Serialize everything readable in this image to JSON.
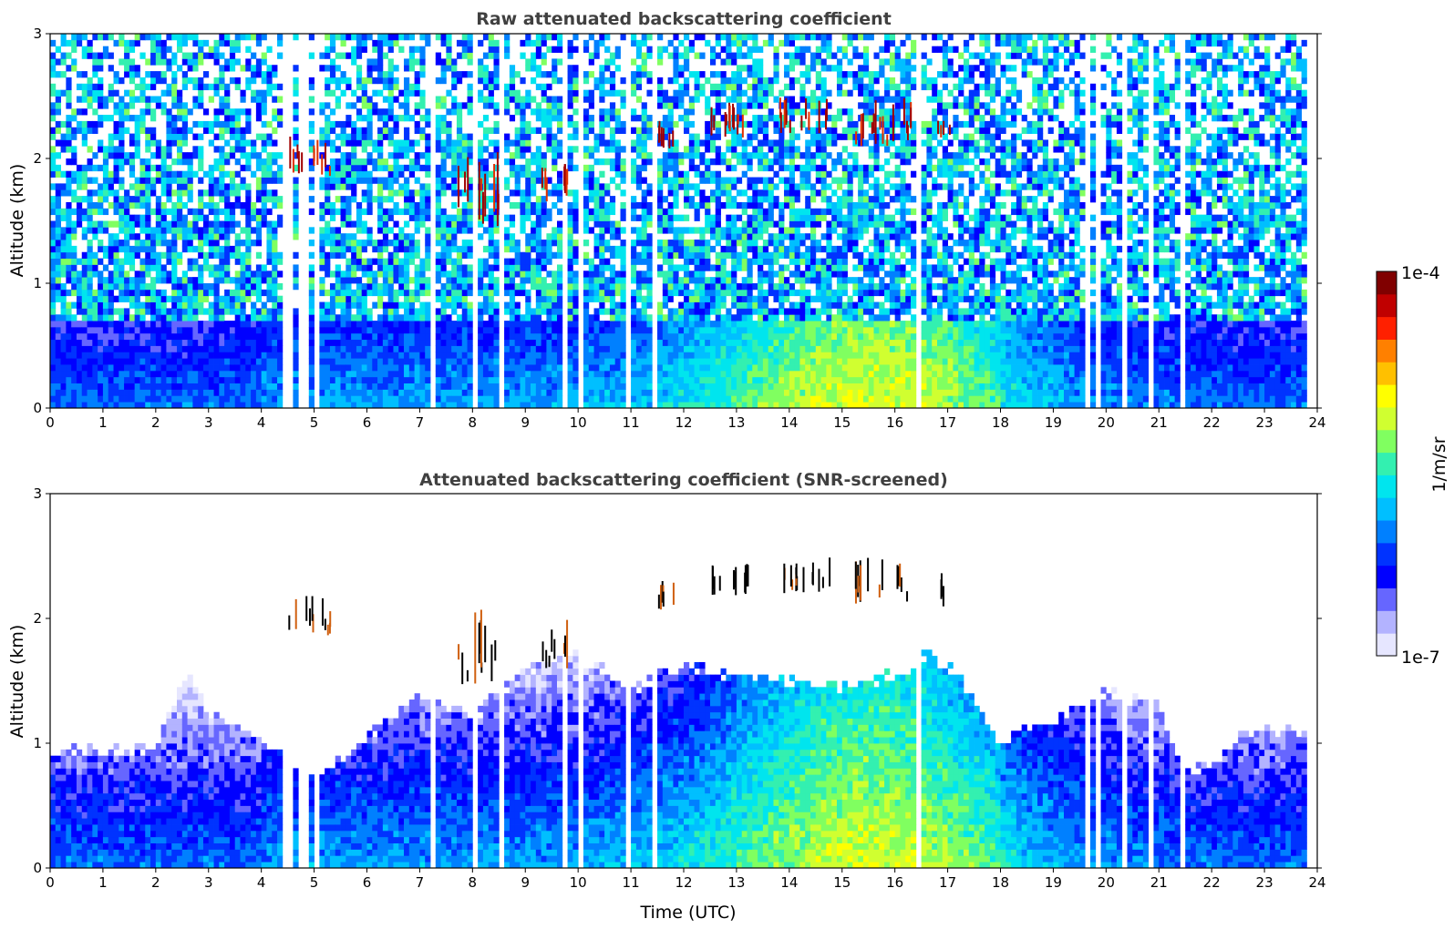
{
  "chart_data": [
    {
      "type": "heatmap",
      "title": "Raw attenuated backscattering coefficient",
      "xlabel": "",
      "ylabel": "Altitude (km)",
      "xlim": [
        0,
        24
      ],
      "ylim": [
        0,
        3
      ],
      "xticks": [
        0,
        1,
        2,
        3,
        4,
        5,
        6,
        7,
        8,
        9,
        10,
        11,
        12,
        13,
        14,
        15,
        16,
        17,
        18,
        19,
        20,
        21,
        22,
        23,
        24
      ],
      "yticks": [
        0,
        1,
        2,
        3
      ],
      "time_resolution_note": "",
      "cloud_layers": [
        {
          "x_start": 4.5,
          "x_end": 5.3,
          "y_base": 1.85,
          "y_top": 2.15
        },
        {
          "x_start": 7.7,
          "x_end": 8.5,
          "y_base": 1.45,
          "y_top": 2.1
        },
        {
          "x_start": 9.2,
          "x_end": 9.8,
          "y_base": 1.6,
          "y_top": 2.0
        },
        {
          "x_start": 11.4,
          "x_end": 11.8,
          "y_base": 2.05,
          "y_top": 2.25
        },
        {
          "x_start": 12.4,
          "x_end": 13.2,
          "y_base": 2.15,
          "y_top": 2.4
        },
        {
          "x_start": 13.8,
          "x_end": 14.8,
          "y_base": 2.2,
          "y_top": 2.45
        },
        {
          "x_start": 15.2,
          "x_end": 16.3,
          "y_base": 2.1,
          "y_top": 2.47
        },
        {
          "x_start": 16.8,
          "x_end": 17.1,
          "y_base": 2.05,
          "y_top": 2.35
        }
      ]
    },
    {
      "type": "heatmap",
      "title": "Attenuated backscattering coefficient (SNR-screened)",
      "xlabel": "Time (UTC)",
      "ylabel": "Altitude (km)",
      "xlim": [
        0,
        24
      ],
      "ylim": [
        0,
        3
      ],
      "xticks": [
        0,
        1,
        2,
        3,
        4,
        5,
        6,
        7,
        8,
        9,
        10,
        11,
        12,
        13,
        14,
        15,
        16,
        17,
        18,
        19,
        20,
        21,
        22,
        23,
        24
      ],
      "yticks": [
        0,
        1,
        2,
        3
      ],
      "boundary_layer_top": [
        [
          0,
          0.95
        ],
        [
          2,
          0.95
        ],
        [
          2.6,
          1.6
        ],
        [
          3,
          1.25
        ],
        [
          4.2,
          1.0
        ],
        [
          5,
          0.7
        ],
        [
          6,
          1.05
        ],
        [
          7,
          1.4
        ],
        [
          8,
          1.2
        ],
        [
          9,
          1.6
        ],
        [
          10,
          1.7
        ],
        [
          11,
          1.45
        ],
        [
          12,
          1.6
        ],
        [
          13,
          1.55
        ],
        [
          14,
          1.5
        ],
        [
          15,
          1.45
        ],
        [
          16,
          1.55
        ],
        [
          16.6,
          1.7
        ],
        [
          17.2,
          1.55
        ],
        [
          18,
          1.0
        ],
        [
          19,
          1.2
        ],
        [
          20,
          1.4
        ],
        [
          21,
          1.3
        ],
        [
          21.5,
          0.75
        ],
        [
          22,
          0.85
        ],
        [
          22.5,
          1.05
        ],
        [
          23,
          1.1
        ],
        [
          23.8,
          1.1
        ]
      ]
    }
  ],
  "colorbar": {
    "label": "1/m/sr",
    "max_label": "1e-4",
    "min_label": "1e-7",
    "colors": [
      "#e6e6ff",
      "#b3b3ff",
      "#6666ff",
      "#0000ff",
      "#0033ff",
      "#0080ff",
      "#00bfff",
      "#00e5ee",
      "#33f0b0",
      "#80ff60",
      "#d0ff30",
      "#ffff00",
      "#ffc000",
      "#ff8000",
      "#ff2000",
      "#c00000",
      "#800000"
    ]
  },
  "colors": {
    "near_surface": "#0a5be8",
    "mixing_layer": "#00bfff",
    "daytime_peak": "#66ee88",
    "cloud": "#b00000",
    "noise_high": "#1a66ff",
    "noise_low": "#1a33ff"
  }
}
